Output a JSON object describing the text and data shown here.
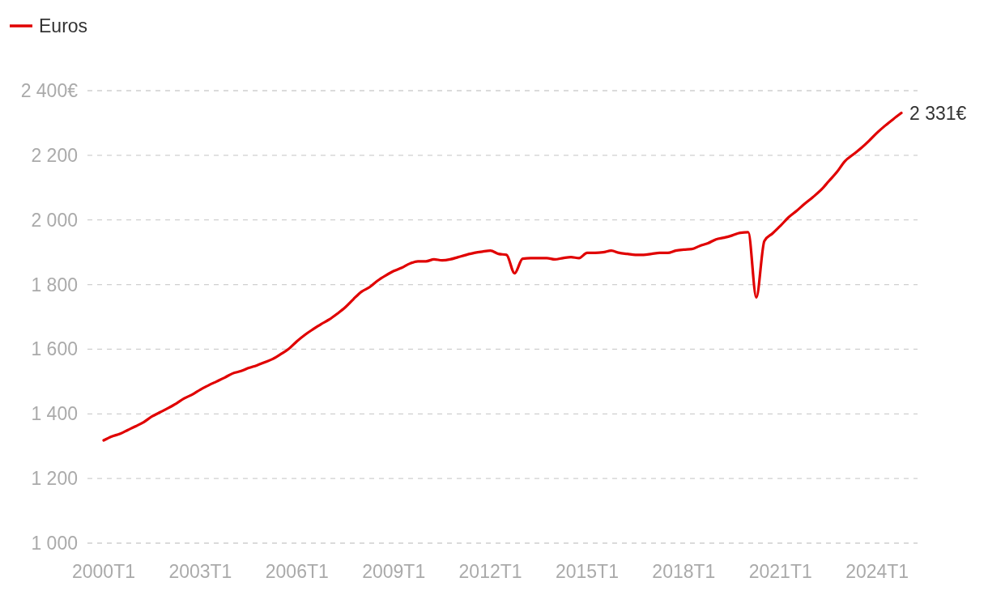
{
  "chart_data": {
    "type": "line",
    "categories": [
      "2000T1",
      null,
      null,
      null,
      null,
      null,
      null,
      null,
      null,
      null,
      null,
      null,
      "2003T1",
      null,
      null,
      null,
      null,
      null,
      null,
      null,
      null,
      null,
      null,
      null,
      "2006T1",
      null,
      null,
      null,
      null,
      null,
      null,
      null,
      null,
      null,
      null,
      null,
      "2009T1",
      null,
      null,
      null,
      null,
      null,
      null,
      null,
      null,
      null,
      null,
      null,
      "2012T1",
      null,
      null,
      null,
      null,
      null,
      null,
      null,
      null,
      null,
      null,
      null,
      "2015T1",
      null,
      null,
      null,
      null,
      null,
      null,
      null,
      null,
      null,
      null,
      null,
      "2018T1",
      null,
      null,
      null,
      null,
      null,
      null,
      null,
      null,
      null,
      null,
      null,
      "2021T1",
      null,
      null,
      null,
      null,
      null,
      null,
      null,
      null,
      null,
      null,
      null,
      "2024T1",
      null,
      null,
      null
    ],
    "series": [
      {
        "name": "Euros",
        "color": "#e00000",
        "values": [
          1318,
          1330,
          1338,
          1350,
          1362,
          1375,
          1392,
          1405,
          1418,
          1432,
          1448,
          1460,
          1475,
          1488,
          1500,
          1512,
          1525,
          1532,
          1542,
          1550,
          1560,
          1570,
          1585,
          1602,
          1625,
          1645,
          1662,
          1678,
          1692,
          1710,
          1730,
          1755,
          1778,
          1792,
          1812,
          1828,
          1842,
          1852,
          1865,
          1872,
          1872,
          1878,
          1875,
          1878,
          1885,
          1892,
          1898,
          1902,
          1905,
          1895,
          1892,
          1835,
          1880,
          1882,
          1882,
          1882,
          1878,
          1882,
          1885,
          1882,
          1898,
          1898,
          1900,
          1905,
          1898,
          1895,
          1892,
          1892,
          1895,
          1898,
          1898,
          1905,
          1908,
          1910,
          1920,
          1928,
          1940,
          1945,
          1952,
          1960,
          1962,
          1760,
          1935,
          1958,
          1982,
          2008,
          2028,
          2050,
          2070,
          2092,
          2120,
          2148,
          2182,
          2202,
          2222,
          2245,
          2270,
          2292,
          2312,
          2331
        ]
      }
    ],
    "ylim": [
      1000,
      2400
    ],
    "yticks": [
      {
        "value": 1000,
        "label": "1 000"
      },
      {
        "value": 1200,
        "label": "1 200"
      },
      {
        "value": 1400,
        "label": "1 400"
      },
      {
        "value": 1600,
        "label": "1 600"
      },
      {
        "value": 1800,
        "label": "1 800"
      },
      {
        "value": 2000,
        "label": "2 000"
      },
      {
        "value": 2200,
        "label": "2 200"
      },
      {
        "value": 2400,
        "label": "2 400€"
      }
    ],
    "grid": "y",
    "legend": "top left",
    "marker": "none",
    "line_style": "solid",
    "annotations": [
      "2 331€"
    ]
  }
}
